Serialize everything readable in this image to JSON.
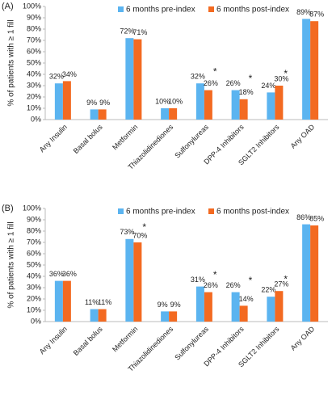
{
  "chart_data": [
    {
      "type": "bar",
      "panel": "(A)",
      "y_label": "% of patients with ≥ 1 fill",
      "categories": [
        "Any Insulin",
        "Basal bolus",
        "Metformin",
        "Thiazolidinediones",
        "Sulfonylureas",
        "DPP-4 Inhibitors",
        "SGLT2 Inhibitors",
        "Any OAD"
      ],
      "series": [
        {
          "name": "6 months pre-index",
          "color": "#5bb4f0",
          "values": [
            32,
            9,
            72,
            10,
            32,
            26,
            24,
            89
          ],
          "value_labels": [
            "32%",
            "9%",
            "72%",
            "10%",
            "32%",
            "26%",
            "24%",
            "89%"
          ]
        },
        {
          "name": "6 months post-index",
          "color": "#f36a21",
          "values": [
            34,
            9,
            71,
            10,
            26,
            18,
            30,
            87
          ],
          "value_labels": [
            "34%",
            "9%",
            "71%",
            "10%",
            "26%",
            "18%",
            "30%",
            "87%"
          ]
        }
      ],
      "annotations": [
        {
          "text": "*",
          "category": "Sulfonylureas"
        },
        {
          "text": "*",
          "category": "DPP-4 Inhibitors"
        },
        {
          "text": "*",
          "category": "SGLT2 Inhibitors"
        }
      ],
      "ylim": [
        0,
        100
      ],
      "yticks": [
        {
          "value": 0,
          "label": "0%"
        },
        {
          "value": 10,
          "label": "10%"
        },
        {
          "value": 20,
          "label": "20%"
        },
        {
          "value": 30,
          "label": "30%"
        },
        {
          "value": 40,
          "label": "40%"
        },
        {
          "value": 50,
          "label": "50%"
        },
        {
          "value": 60,
          "label": "60%"
        },
        {
          "value": 70,
          "label": "70%"
        },
        {
          "value": 80,
          "label": "80%"
        },
        {
          "value": 90,
          "label": "90%"
        },
        {
          "value": 100,
          "label": "100%"
        }
      ],
      "grid": false,
      "legend": "top"
    },
    {
      "type": "bar",
      "panel": "(B)",
      "y_label": "% of patients with ≥ 1 fill",
      "categories": [
        "Any Insulin",
        "Basal bolus",
        "Metformin",
        "Thiazolidinediones",
        "Sulfonylureas",
        "DPP-4 Inhibitors",
        "SGLT2 Inhibitors",
        "Any OAD"
      ],
      "series": [
        {
          "name": "6 months pre-index",
          "color": "#5bb4f0",
          "values": [
            36,
            11,
            73,
            9,
            31,
            26,
            22,
            86
          ],
          "value_labels": [
            "36%",
            "11%",
            "73%",
            "9%",
            "31%",
            "26%",
            "22%",
            "86%"
          ]
        },
        {
          "name": "6 months post-index",
          "color": "#f36a21",
          "values": [
            36,
            11,
            70,
            9,
            26,
            14,
            27,
            85
          ],
          "value_labels": [
            "36%",
            "11%",
            "70%",
            "9%",
            "26%",
            "14%",
            "27%",
            "85%"
          ]
        }
      ],
      "annotations": [
        {
          "text": "*",
          "category": "Metformin"
        },
        {
          "text": "*",
          "category": "Sulfonylureas"
        },
        {
          "text": "*",
          "category": "DPP-4 Inhibitors"
        },
        {
          "text": "*",
          "category": "SGLT2 Inhibitors"
        }
      ],
      "ylim": [
        0,
        100
      ],
      "yticks": [
        {
          "value": 0,
          "label": "0%"
        },
        {
          "value": 10,
          "label": "10%"
        },
        {
          "value": 20,
          "label": "20%"
        },
        {
          "value": 30,
          "label": "30%"
        },
        {
          "value": 40,
          "label": "40%"
        },
        {
          "value": 50,
          "label": "50%"
        },
        {
          "value": 60,
          "label": "60%"
        },
        {
          "value": 70,
          "label": "70%"
        },
        {
          "value": 80,
          "label": "80%"
        },
        {
          "value": 90,
          "label": "90%"
        },
        {
          "value": 100,
          "label": "100%"
        }
      ],
      "grid": false,
      "legend": "top"
    }
  ]
}
